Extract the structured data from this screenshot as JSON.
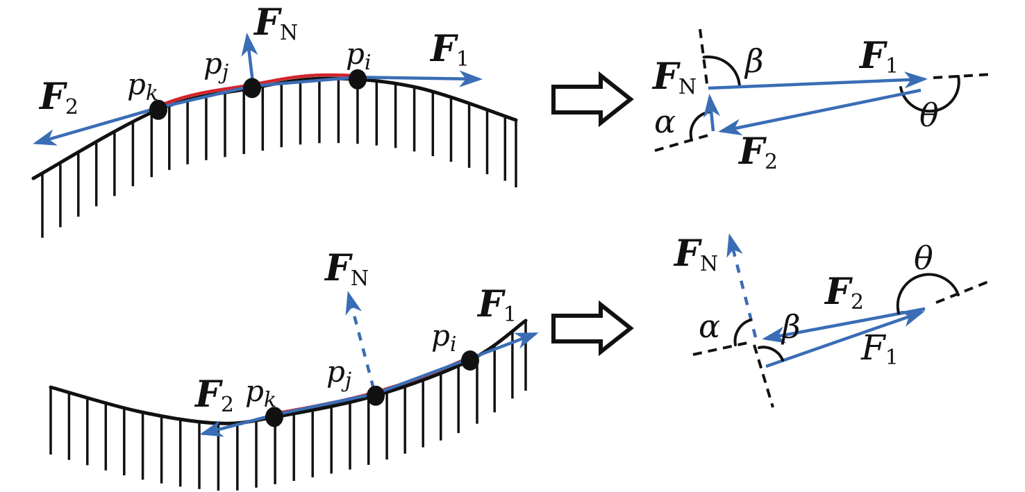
{
  "figure": {
    "description": "Forces at discretized contact points on convex and concave surfaces, with corresponding force polygons",
    "colors": {
      "force_blue": "#3B6DB5",
      "segment_red": "#D4232B",
      "ink": "#111111",
      "background": "#FFFFFF"
    }
  },
  "panels": {
    "top_left": {
      "kind": "convex-surface-with-contact-points",
      "labels": {
        "F2": {
          "main": "F",
          "sub": "2"
        },
        "pk": {
          "main": "p",
          "sub": "k"
        },
        "pj": {
          "main": "p",
          "sub": "j"
        },
        "FN": {
          "main": "F",
          "sub": "N"
        },
        "pi": {
          "main": "p",
          "sub": "i"
        },
        "F1": {
          "main": "F",
          "sub": "1"
        }
      }
    },
    "top_right": {
      "kind": "force-triangle",
      "labels": {
        "FN": {
          "main": "F",
          "sub": "N"
        },
        "beta": {
          "main": "β"
        },
        "F1": {
          "main": "F",
          "sub": "1"
        },
        "alpha": {
          "main": "α"
        },
        "F2": {
          "main": "F",
          "sub": "2"
        },
        "theta": {
          "main": "θ"
        }
      }
    },
    "bottom_left": {
      "kind": "concave-surface-with-contact-points",
      "labels": {
        "F2": {
          "main": "F",
          "sub": "2"
        },
        "pk": {
          "main": "p",
          "sub": "k"
        },
        "pj": {
          "main": "p",
          "sub": "j"
        },
        "FN": {
          "main": "F",
          "sub": "N"
        },
        "pi": {
          "main": "p",
          "sub": "i"
        },
        "F1": {
          "main": "F",
          "sub": "1"
        }
      }
    },
    "bottom_right": {
      "kind": "force-polygon",
      "labels": {
        "FN": {
          "main": "F",
          "sub": "N"
        },
        "alpha": {
          "main": "α"
        },
        "beta": {
          "main": "β"
        },
        "F2": {
          "main": "F",
          "sub": "2"
        },
        "F1": {
          "main": "F",
          "sub": "1"
        },
        "theta": {
          "main": "θ"
        }
      }
    }
  }
}
